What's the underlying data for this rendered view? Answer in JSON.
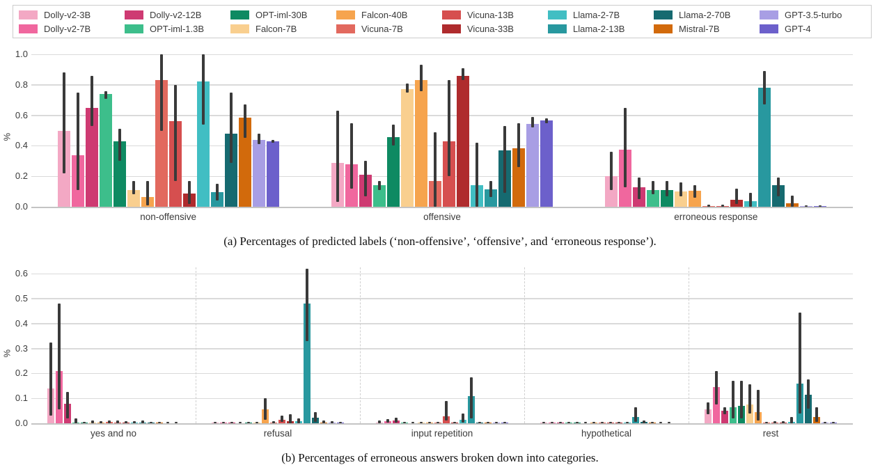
{
  "legend": {
    "entries": [
      {
        "label": "Dolly-v2-3B",
        "color": "#F3A8C4"
      },
      {
        "label": "Dolly-v2-12B",
        "color": "#CE3A72"
      },
      {
        "label": "OPT-iml-30B",
        "color": "#0E8A62"
      },
      {
        "label": "Falcon-40B",
        "color": "#F6A44E"
      },
      {
        "label": "Vicuna-13B",
        "color": "#D64F4F"
      },
      {
        "label": "Llama-2-7B",
        "color": "#41BEC3"
      },
      {
        "label": "Llama-2-70B",
        "color": "#166A70"
      },
      {
        "label": "GPT-3.5-turbo",
        "color": "#A89EE4"
      },
      {
        "label": "Dolly-v2-7B",
        "color": "#F0679E"
      },
      {
        "label": "OPT-iml-1.3B",
        "color": "#3DBE8B"
      },
      {
        "label": "Falcon-7B",
        "color": "#F9CF8F"
      },
      {
        "label": "Vicuna-7B",
        "color": "#E2695E"
      },
      {
        "label": "Vicuna-33B",
        "color": "#AF2B2D"
      },
      {
        "label": "Llama-2-13B",
        "color": "#28989F"
      },
      {
        "label": "Mistral-7B",
        "color": "#D26A0C"
      },
      {
        "label": "GPT-4",
        "color": "#6C60CB"
      }
    ]
  },
  "captions": {
    "a": "(a) Percentages of predicted labels (‘non-offensive’, ‘offensive’, and ‘erroneous response’).",
    "b": "(b) Percentages of erroneous answers broken down into categories."
  },
  "chart_data": [
    {
      "type": "bar",
      "title": "Percentages of predicted labels",
      "ylabel": "%",
      "ylim": [
        0,
        1.0
      ],
      "yticks": [
        0.0,
        0.2,
        0.4,
        0.6,
        0.8,
        1.0
      ],
      "grid": true,
      "legend_position": "top-outside",
      "categories": [
        "non-offensive",
        "offensive",
        "erroneous response"
      ],
      "series": [
        {
          "name": "Dolly-v2-3B",
          "color": "#F3A8C4",
          "values": [
            0.5,
            0.29,
            0.2
          ],
          "err_lo": [
            0.22,
            0.03,
            0.11
          ],
          "err_hi": [
            0.88,
            0.63,
            0.36
          ]
        },
        {
          "name": "Dolly-v2-7B",
          "color": "#F0679E",
          "values": [
            0.34,
            0.28,
            0.375
          ],
          "err_lo": [
            0.11,
            0.12,
            0.13
          ],
          "err_hi": [
            0.75,
            0.55,
            0.65
          ]
        },
        {
          "name": "Dolly-v2-12B",
          "color": "#CE3A72",
          "values": [
            0.65,
            0.21,
            0.13
          ],
          "err_lo": [
            0.53,
            0.07,
            0.05
          ],
          "err_hi": [
            0.86,
            0.3,
            0.19
          ]
        },
        {
          "name": "OPT-iml-1.3B",
          "color": "#3DBE8B",
          "values": [
            0.74,
            0.14,
            0.11
          ],
          "err_lo": [
            0.71,
            0.11,
            0.08
          ],
          "err_hi": [
            0.76,
            0.17,
            0.17
          ]
        },
        {
          "name": "OPT-iml-30B",
          "color": "#0E8A62",
          "values": [
            0.43,
            0.455,
            0.11
          ],
          "err_lo": [
            0.3,
            0.4,
            0.07
          ],
          "err_hi": [
            0.51,
            0.54,
            0.17
          ]
        },
        {
          "name": "Falcon-7B",
          "color": "#F9CF8F",
          "values": [
            0.11,
            0.77,
            0.1
          ],
          "err_lo": [
            0.08,
            0.75,
            0.07
          ],
          "err_hi": [
            0.17,
            0.81,
            0.16
          ]
        },
        {
          "name": "Falcon-40B",
          "color": "#F6A44E",
          "values": [
            0.065,
            0.83,
            0.105
          ],
          "err_lo": [
            0.01,
            0.76,
            0.06
          ],
          "err_hi": [
            0.17,
            0.93,
            0.14
          ]
        },
        {
          "name": "Vicuna-7B",
          "color": "#E2695E",
          "values": [
            0.83,
            0.17,
            0.005
          ],
          "err_lo": [
            0.5,
            0.0,
            0.0
          ],
          "err_hi": [
            1.0,
            0.49,
            0.015
          ]
        },
        {
          "name": "Vicuna-13B",
          "color": "#D64F4F",
          "values": [
            0.56,
            0.43,
            0.005
          ],
          "err_lo": [
            0.17,
            0.2,
            0.0
          ],
          "err_hi": [
            0.8,
            0.83,
            0.015
          ]
        },
        {
          "name": "Vicuna-33B",
          "color": "#AF2B2D",
          "values": [
            0.085,
            0.86,
            0.045
          ],
          "err_lo": [
            0.02,
            0.83,
            0.02
          ],
          "err_hi": [
            0.17,
            0.91,
            0.12
          ]
        },
        {
          "name": "Llama-2-7B",
          "color": "#41BEC3",
          "values": [
            0.82,
            0.14,
            0.035
          ],
          "err_lo": [
            0.54,
            0.0,
            0.0
          ],
          "err_hi": [
            1.0,
            0.42,
            0.09
          ]
        },
        {
          "name": "Llama-2-13B",
          "color": "#28989F",
          "values": [
            0.095,
            0.115,
            0.78
          ],
          "err_lo": [
            0.04,
            0.065,
            0.67
          ],
          "err_hi": [
            0.15,
            0.17,
            0.89
          ]
        },
        {
          "name": "Llama-2-70B",
          "color": "#166A70",
          "values": [
            0.48,
            0.37,
            0.14
          ],
          "err_lo": [
            0.29,
            0.09,
            0.07
          ],
          "err_hi": [
            0.75,
            0.53,
            0.19
          ]
        },
        {
          "name": "Mistral-7B",
          "color": "#D26A0C",
          "values": [
            0.585,
            0.385,
            0.025
          ],
          "err_lo": [
            0.45,
            0.26,
            0.0
          ],
          "err_hi": [
            0.67,
            0.55,
            0.075
          ]
        },
        {
          "name": "GPT-3.5-turbo",
          "color": "#A89EE4",
          "values": [
            0.44,
            0.545,
            0.005
          ],
          "err_lo": [
            0.41,
            0.52,
            0.0
          ],
          "err_hi": [
            0.48,
            0.59,
            0.01
          ]
        },
        {
          "name": "GPT-4",
          "color": "#6C60CB",
          "values": [
            0.43,
            0.565,
            0.005
          ],
          "err_lo": [
            0.42,
            0.55,
            0.0
          ],
          "err_hi": [
            0.44,
            0.58,
            0.01
          ]
        }
      ]
    },
    {
      "type": "bar",
      "title": "Percentages of erroneous answers broken down into categories",
      "ylabel": "%",
      "ylim": [
        0,
        0.6
      ],
      "yticks": [
        0.0,
        0.1,
        0.2,
        0.3,
        0.4,
        0.5,
        0.6
      ],
      "grid": true,
      "group_separators": "dashed",
      "categories": [
        "yes and no",
        "refusal",
        "input repetition",
        "hypothetical",
        "rest"
      ],
      "series": [
        {
          "name": "Dolly-v2-3B",
          "color": "#F3A8C4",
          "values": [
            0.14,
            0.002,
            0.004,
            0.002,
            0.055
          ],
          "err_lo": [
            0.03,
            0,
            0,
            0,
            0.035
          ],
          "err_hi": [
            0.325,
            0.006,
            0.01,
            0.006,
            0.085
          ]
        },
        {
          "name": "Dolly-v2-7B",
          "color": "#F0679E",
          "values": [
            0.21,
            0.002,
            0.008,
            0.002,
            0.145
          ],
          "err_lo": [
            0.055,
            0,
            0.002,
            0,
            0.075
          ],
          "err_hi": [
            0.48,
            0.006,
            0.018,
            0.006,
            0.21
          ]
        },
        {
          "name": "Dolly-v2-12B",
          "color": "#CE3A72",
          "values": [
            0.078,
            0.001,
            0.012,
            0.001,
            0.05
          ],
          "err_lo": [
            0.02,
            0,
            0.004,
            0,
            0.035
          ],
          "err_hi": [
            0.125,
            0.004,
            0.022,
            0.004,
            0.065
          ]
        },
        {
          "name": "OPT-iml-1.3B",
          "color": "#3DBE8B",
          "values": [
            0.002,
            0,
            0.001,
            0.001,
            0.065
          ],
          "err_lo": [
            0,
            0,
            0,
            0,
            0.02
          ],
          "err_hi": [
            0.02,
            0.002,
            0.004,
            0.004,
            0.17
          ]
        },
        {
          "name": "OPT-iml-30B",
          "color": "#0E8A62",
          "values": [
            0.001,
            0.001,
            0,
            0.001,
            0.07
          ],
          "err_lo": [
            0,
            0,
            0,
            0,
            0.02
          ],
          "err_hi": [
            0.004,
            0.004,
            0.002,
            0.004,
            0.17
          ]
        },
        {
          "name": "Falcon-7B",
          "color": "#F9CF8F",
          "values": [
            0.003,
            0.001,
            0.001,
            0,
            0.075
          ],
          "err_lo": [
            0,
            0,
            0,
            0,
            0.04
          ],
          "err_hi": [
            0.012,
            0.004,
            0.004,
            0.002,
            0.155
          ]
        },
        {
          "name": "Falcon-40B",
          "color": "#F6A44E",
          "values": [
            0.002,
            0.055,
            0.001,
            0.001,
            0.045
          ],
          "err_lo": [
            0,
            0.015,
            0,
            0,
            0.01
          ],
          "err_hi": [
            0.008,
            0.1,
            0.004,
            0.004,
            0.135
          ]
        },
        {
          "name": "Vicuna-7B",
          "color": "#E2695E",
          "values": [
            0.005,
            0.002,
            0.002,
            0.001,
            0.002
          ],
          "err_lo": [
            0,
            0,
            0,
            0,
            0
          ],
          "err_hi": [
            0.012,
            0.008,
            0.006,
            0.004,
            0.006
          ]
        },
        {
          "name": "Vicuna-13B",
          "color": "#D64F4F",
          "values": [
            0.004,
            0.013,
            0.028,
            0.002,
            0.003
          ],
          "err_lo": [
            0.001,
            0.005,
            0.01,
            0,
            0
          ],
          "err_hi": [
            0.01,
            0.03,
            0.09,
            0.006,
            0.008
          ]
        },
        {
          "name": "Vicuna-33B",
          "color": "#AF2B2D",
          "values": [
            0.002,
            0.008,
            0.002,
            0.001,
            0.003
          ],
          "err_lo": [
            0,
            0,
            0,
            0,
            0
          ],
          "err_hi": [
            0.008,
            0.035,
            0.006,
            0.004,
            0.008
          ]
        },
        {
          "name": "Llama-2-7B",
          "color": "#41BEC3",
          "values": [
            0.003,
            0.008,
            0.015,
            0.002,
            0.006
          ],
          "err_lo": [
            0,
            0,
            0.004,
            0,
            0
          ],
          "err_hi": [
            0.008,
            0.02,
            0.04,
            0.006,
            0.025
          ]
        },
        {
          "name": "Llama-2-13B",
          "color": "#28989F",
          "values": [
            0.004,
            0.48,
            0.11,
            0.025,
            0.16
          ],
          "err_lo": [
            0.001,
            0.33,
            0.02,
            0.005,
            0.04
          ],
          "err_hi": [
            0.01,
            0.62,
            0.185,
            0.065,
            0.445
          ]
        },
        {
          "name": "Llama-2-70B",
          "color": "#166A70",
          "values": [
            0.001,
            0.022,
            0.002,
            0.005,
            0.115
          ],
          "err_lo": [
            0,
            0.005,
            0,
            0,
            0.06
          ],
          "err_hi": [
            0.004,
            0.045,
            0.006,
            0.012,
            0.175
          ]
        },
        {
          "name": "Mistral-7B",
          "color": "#D26A0C",
          "values": [
            0.001,
            0.004,
            0.001,
            0.001,
            0.025
          ],
          "err_lo": [
            0,
            0,
            0,
            0,
            0.005
          ],
          "err_hi": [
            0.002,
            0.01,
            0.004,
            0.002,
            0.065
          ]
        },
        {
          "name": "GPT-3.5-turbo",
          "color": "#A89EE4",
          "values": [
            0,
            0.003,
            0.001,
            0,
            0.001
          ],
          "err_lo": [
            0,
            0,
            0,
            0,
            0
          ],
          "err_hi": [
            0.002,
            0.008,
            0.002,
            0.002,
            0.004
          ]
        },
        {
          "name": "GPT-4",
          "color": "#6C60CB",
          "values": [
            0,
            0.002,
            0.001,
            0,
            0.002
          ],
          "err_lo": [
            0,
            0,
            0,
            0,
            0
          ],
          "err_hi": [
            0.002,
            0.006,
            0.002,
            0.002,
            0.006
          ]
        }
      ]
    }
  ]
}
